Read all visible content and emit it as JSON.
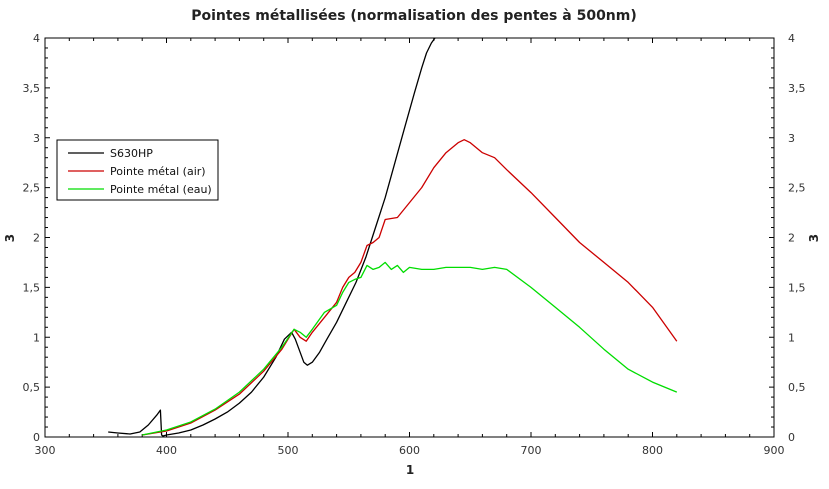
{
  "chart_data": {
    "type": "line",
    "title": "Pointes métallisées (normalisation des pentes à 500nm)",
    "xlabel": "1",
    "ylabel": "3",
    "y2label": "3",
    "xlim": [
      300,
      900
    ],
    "ylim": [
      0,
      4
    ],
    "xticks": [
      300,
      400,
      500,
      600,
      700,
      800,
      900
    ],
    "yticks": [
      "0",
      "0,5",
      "1",
      "1,5",
      "2",
      "2,5",
      "3",
      "3,5",
      "4"
    ],
    "ytick_values": [
      0,
      0.5,
      1,
      1.5,
      2,
      2.5,
      3,
      3.5,
      4
    ],
    "grid": false,
    "legend_position": "left",
    "series": [
      {
        "name": "S630HP",
        "color": "#000000",
        "x": [
          352,
          360,
          370,
          378,
          385,
          392,
          395,
          396,
          397,
          400,
          410,
          420,
          430,
          440,
          450,
          460,
          470,
          480,
          490,
          497,
          503,
          506,
          510,
          513,
          516,
          520,
          526,
          532,
          540,
          548,
          556,
          564,
          572,
          580,
          588,
          596,
          604,
          610,
          614,
          618,
          621
        ],
        "y": [
          0.05,
          0.04,
          0.03,
          0.05,
          0.12,
          0.22,
          0.27,
          0.02,
          0.01,
          0.02,
          0.04,
          0.07,
          0.12,
          0.18,
          0.25,
          0.34,
          0.45,
          0.6,
          0.8,
          0.98,
          1.05,
          0.98,
          0.85,
          0.75,
          0.72,
          0.75,
          0.85,
          0.98,
          1.15,
          1.35,
          1.55,
          1.8,
          2.1,
          2.4,
          2.75,
          3.1,
          3.45,
          3.7,
          3.85,
          3.95,
          4.0
        ]
      },
      {
        "name": "Pointe métal (air)",
        "color": "#cc0000",
        "x": [
          380,
          400,
          420,
          440,
          460,
          480,
          495,
          505,
          510,
          515,
          520,
          530,
          540,
          545,
          550,
          555,
          560,
          565,
          570,
          575,
          580,
          590,
          600,
          610,
          620,
          630,
          640,
          645,
          650,
          660,
          670,
          680,
          700,
          720,
          740,
          760,
          780,
          800,
          820
        ],
        "y": [
          0.02,
          0.06,
          0.14,
          0.27,
          0.43,
          0.66,
          0.88,
          1.08,
          1.0,
          0.96,
          1.05,
          1.2,
          1.35,
          1.5,
          1.6,
          1.65,
          1.75,
          1.92,
          1.95,
          2.0,
          2.18,
          2.2,
          2.35,
          2.5,
          2.7,
          2.85,
          2.95,
          2.98,
          2.95,
          2.85,
          2.8,
          2.68,
          2.45,
          2.2,
          1.95,
          1.75,
          1.55,
          1.3,
          0.96
        ]
      },
      {
        "name": "Pointe métal (eau)",
        "color": "#00dd00",
        "x": [
          380,
          400,
          420,
          440,
          460,
          480,
          495,
          505,
          510,
          515,
          520,
          530,
          540,
          545,
          550,
          555,
          560,
          565,
          570,
          575,
          580,
          585,
          590,
          595,
          600,
          610,
          620,
          630,
          640,
          650,
          660,
          670,
          680,
          700,
          720,
          740,
          760,
          780,
          800,
          820
        ],
        "y": [
          0.02,
          0.07,
          0.15,
          0.28,
          0.45,
          0.68,
          0.9,
          1.08,
          1.05,
          1.0,
          1.08,
          1.25,
          1.32,
          1.45,
          1.55,
          1.58,
          1.6,
          1.72,
          1.68,
          1.7,
          1.75,
          1.68,
          1.72,
          1.65,
          1.7,
          1.68,
          1.68,
          1.7,
          1.7,
          1.7,
          1.68,
          1.7,
          1.68,
          1.5,
          1.3,
          1.1,
          0.88,
          0.68,
          0.55,
          0.45
        ]
      }
    ]
  }
}
